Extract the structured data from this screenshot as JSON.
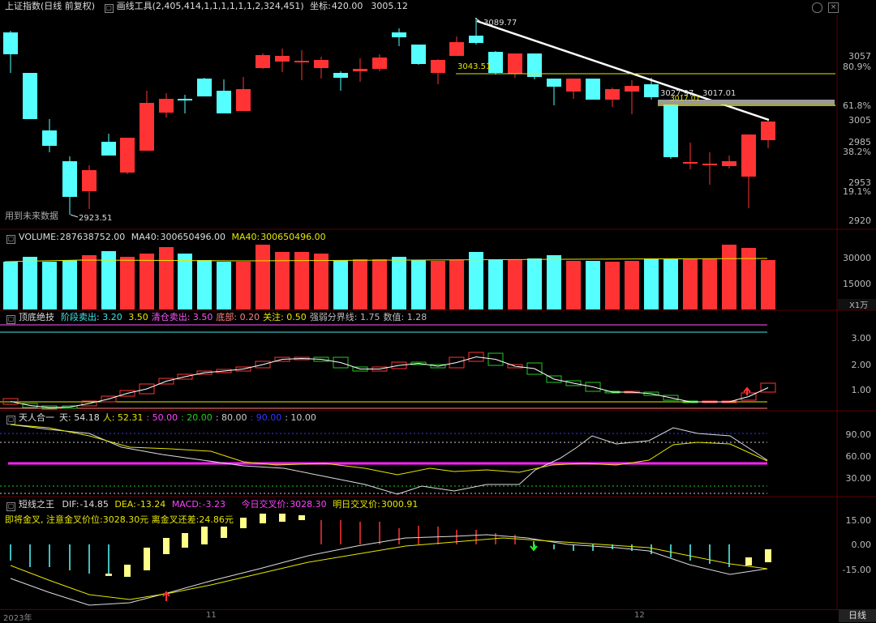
{
  "main": {
    "index_name": "上证指数",
    "period_label": "(日线 前复权)",
    "tool_label": "画线工具",
    "tool_params": "(2,405,414,1,1,1,1,1,1,2,324,451)",
    "coord_label": "坐标:",
    "coord_value": "420.00",
    "coord_price": "3005.12",
    "watermark": "用到未来数据",
    "annotations": {
      "high": "3089.77",
      "low": "2923.51",
      "line1": "3043.51",
      "line2a": "3027.97",
      "line2b": "3017.01",
      "line3": "3017.01"
    },
    "y_ticks": [
      "3057",
      "80.9%",
      "61.8%",
      "3005",
      "2985",
      "38.2%",
      "2953",
      "19.1%",
      "2920"
    ]
  },
  "volume": {
    "title": "VOLUME:",
    "value": "287638752.00",
    "ma_label": "MA40:",
    "ma_value": "300650496.00",
    "ma_label2": "MA40:",
    "ma_value2": "300650496.00",
    "y_ticks": [
      "30000",
      "15000"
    ],
    "unit": "X1万"
  },
  "indicator1": {
    "title": "顶底绝技",
    "items": [
      {
        "label": "阶段卖出:",
        "value": "3.20",
        "color": "#3ee6e6"
      },
      {
        "label": "",
        "value": "3.50",
        "color": "#e6e600"
      },
      {
        "label": "清仓卖出:",
        "value": "3.50",
        "color": "#ff55ff"
      },
      {
        "label": "底部:",
        "value": "0.20",
        "color": "#ff8080"
      },
      {
        "label": "关注:",
        "value": "0.50",
        "color": "#e6e600"
      },
      {
        "label": "强弱分界线:",
        "value": "1.75",
        "color": "#bbbbbb"
      },
      {
        "label": "数值:",
        "value": "1.28",
        "color": "#bbbbbb"
      }
    ],
    "y_ticks": [
      "3.00",
      "2.00",
      "1.00"
    ]
  },
  "indicator2": {
    "title": "天人合一",
    "items": [
      {
        "label": "天:",
        "value": "54.18",
        "color": "#dddddd"
      },
      {
        "label": "人:",
        "value": "52.31",
        "color": "#e6e600"
      },
      {
        "label": ":",
        "value": "50.00",
        "color": "#ff44ff"
      },
      {
        "label": ":",
        "value": "20.00",
        "color": "#22cc22"
      },
      {
        "label": ":",
        "value": "80.00",
        "color": "#cccccc"
      },
      {
        "label": ":",
        "value": "90.00",
        "color": "#3333ff"
      },
      {
        "label": ":",
        "value": "10.00",
        "color": "#cccccc"
      }
    ],
    "y_ticks": [
      "90.00",
      "60.00",
      "30.00"
    ]
  },
  "indicator3": {
    "title": "短线之王",
    "dif_label": "DIF:",
    "dif_value": "-14.85",
    "dea_label": "DEA:",
    "dea_value": "-13.24",
    "macd_label": "MACD:",
    "macd_value": "-3.23",
    "today_label": "今日交叉价:",
    "today_value": "3028.30",
    "tomorrow_label": "明日交叉价:",
    "tomorrow_value": "3000.91",
    "note": "即将金叉, 注意金叉价位:3028.30元 离金叉还差:24.86元",
    "y_ticks": [
      "15.00",
      "0.00",
      "-15.00"
    ]
  },
  "bottom": {
    "dates": [
      "2023年",
      "11",
      "12"
    ],
    "tab": "日线"
  },
  "colors": {
    "up": "#ff3333",
    "down": "#55ffff",
    "yellow": "#e6e600",
    "white": "#ffffff"
  }
}
